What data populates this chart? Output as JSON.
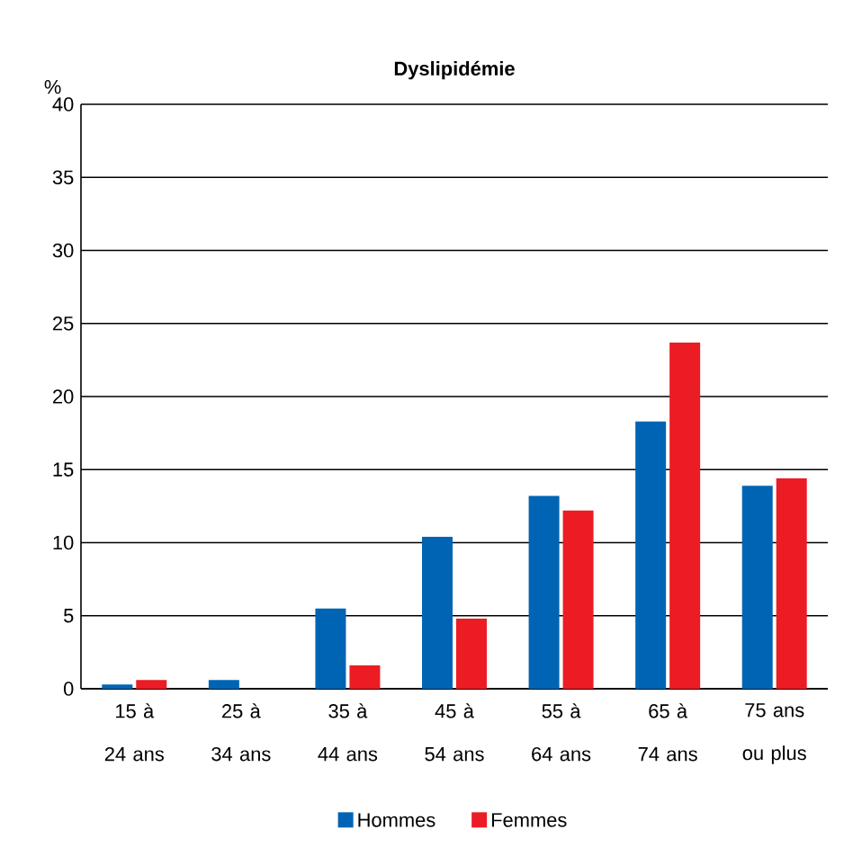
{
  "chart_data": {
    "type": "bar",
    "title": "Dyslipidémie",
    "ylabel": "%",
    "categories": [
      "15 à 24 ans",
      "25 à 34 ans",
      "35 à 44 ans",
      "45 à 54 ans",
      "55 à 64 ans",
      "65 à 74 ans",
      "75 ans ou plus"
    ],
    "series": [
      {
        "name": "Hommes",
        "color": "#0064b4",
        "values": [
          0.3,
          0.6,
          5.5,
          10.4,
          13.2,
          18.3,
          13.9
        ]
      },
      {
        "name": "Femmes",
        "color": "#ec1c24",
        "values": [
          0.6,
          0,
          1.6,
          4.8,
          12.2,
          23.7,
          14.4
        ]
      }
    ],
    "ylim": [
      0,
      40
    ],
    "yticks": [
      0,
      5,
      10,
      15,
      20,
      25,
      30,
      35,
      40
    ],
    "grid": "y",
    "legend": "bottom"
  }
}
